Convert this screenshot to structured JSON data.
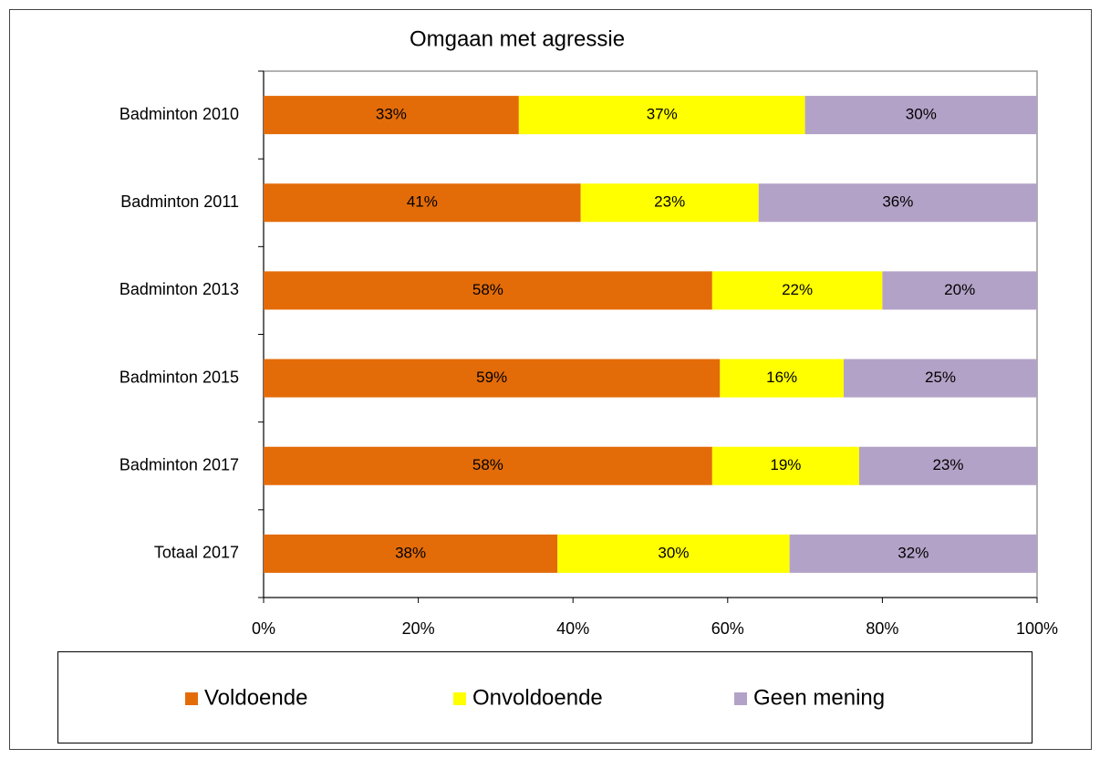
{
  "chart_data": {
    "type": "stacked_bar_horizontal",
    "title": "Omgaan met agressie",
    "categories": [
      "Badminton 2010",
      "Badminton 2011",
      "Badminton 2013",
      "Badminton 2015",
      "Badminton 2017",
      "Totaal 2017"
    ],
    "series": [
      {
        "name": "Voldoende",
        "color": "#e36c09",
        "values": [
          33,
          41,
          58,
          59,
          58,
          38
        ],
        "value_labels": [
          "33%",
          "41%",
          "58%",
          "59%",
          "58%",
          "38%"
        ]
      },
      {
        "name": "Onvoldoende",
        "color": "#ffff00",
        "values": [
          37,
          23,
          22,
          16,
          19,
          30
        ],
        "value_labels": [
          "37%",
          "23%",
          "22%",
          "16%",
          "19%",
          "30%"
        ]
      },
      {
        "name": "Geen mening",
        "color": "#b3a2c7",
        "values": [
          30,
          36,
          20,
          25,
          23,
          32
        ],
        "value_labels": [
          "30%",
          "36%",
          "20%",
          "25%",
          "23%",
          "32%"
        ]
      }
    ],
    "xlim": [
      0,
      100
    ],
    "xticks": [
      {
        "value": 0,
        "label": "0%"
      },
      {
        "value": 20,
        "label": "20%"
      },
      {
        "value": 40,
        "label": "40%"
      },
      {
        "value": 60,
        "label": "60%"
      },
      {
        "value": 80,
        "label": "80%"
      },
      {
        "value": 100,
        "label": "100%"
      }
    ],
    "legend": "bottom"
  }
}
